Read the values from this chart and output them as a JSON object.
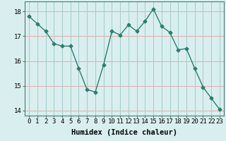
{
  "x": [
    0,
    1,
    2,
    3,
    4,
    5,
    6,
    7,
    8,
    9,
    10,
    11,
    12,
    13,
    14,
    15,
    16,
    17,
    18,
    19,
    20,
    21,
    22,
    23
  ],
  "y": [
    17.8,
    17.5,
    17.2,
    16.7,
    16.6,
    16.6,
    15.7,
    14.85,
    14.75,
    15.85,
    17.2,
    17.05,
    17.45,
    17.2,
    17.6,
    18.1,
    17.4,
    17.15,
    16.45,
    16.5,
    15.7,
    14.95,
    14.5,
    14.05
  ],
  "line_color": "#2e7d6e",
  "marker": "D",
  "marker_size": 2.5,
  "bg_color": "#d9efef",
  "grid_color_h": "#e8b0b0",
  "grid_color_v": "#a8cece",
  "xlabel": "Humidex (Indice chaleur)",
  "ylim": [
    13.8,
    18.4
  ],
  "xlim": [
    -0.5,
    23.5
  ],
  "yticks": [
    14,
    15,
    16,
    17,
    18
  ],
  "xticks": [
    0,
    1,
    2,
    3,
    4,
    5,
    6,
    7,
    8,
    9,
    10,
    11,
    12,
    13,
    14,
    15,
    16,
    17,
    18,
    19,
    20,
    21,
    22,
    23
  ],
  "tick_label_size": 6.5,
  "xlabel_size": 7.5
}
